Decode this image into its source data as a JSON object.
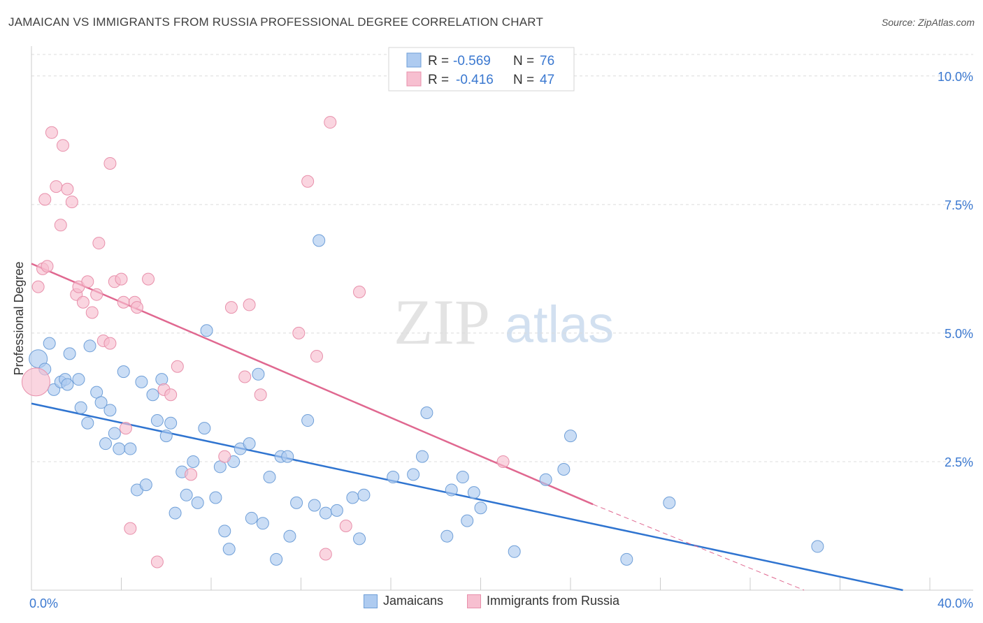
{
  "title": "JAMAICAN VS IMMIGRANTS FROM RUSSIA PROFESSIONAL DEGREE CORRELATION CHART",
  "source": "Source: ZipAtlas.com",
  "watermark": {
    "zip": "ZIP",
    "atlas": "atlas"
  },
  "legend_top": [
    {
      "r_label": "R = ",
      "r_value": "-0.569",
      "n_label": "N = ",
      "n_value": "76"
    },
    {
      "r_label": "R = ",
      "r_value": "-0.416",
      "n_label": "N = ",
      "n_value": "47"
    }
  ],
  "colors": {
    "blue_fill": "#aecbf0",
    "blue_stroke": "#6f9fd8",
    "blue_line": "#2f74d0",
    "pink_fill": "#f7bfd0",
    "pink_stroke": "#e890ab",
    "pink_line": "#e06890",
    "value_text": "#3a78d0"
  },
  "chart_data": {
    "type": "scatter",
    "title": "JAMAICAN VS IMMIGRANTS FROM RUSSIA PROFESSIONAL DEGREE CORRELATION CHART",
    "xlabel": "",
    "ylabel": "Professional Degree",
    "xlim": [
      0,
      40
    ],
    "ylim": [
      0,
      10.5
    ],
    "x_tick_labels": [
      {
        "value": 0,
        "label": "0.0%"
      },
      {
        "value": 40,
        "label": "40.0%"
      }
    ],
    "y_tick_labels": [
      {
        "value": 2.5,
        "label": "2.5%"
      },
      {
        "value": 5.0,
        "label": "5.0%"
      },
      {
        "value": 7.5,
        "label": "7.5%"
      },
      {
        "value": 10.0,
        "label": "10.0%"
      }
    ],
    "grid": true,
    "legend_position": "top-center",
    "series": [
      {
        "name": "Jamaicans",
        "color": "#aecbf0",
        "r": -0.569,
        "n": 76,
        "trend": {
          "x": [
            0,
            38.8
          ],
          "y": [
            3.63,
            0.0
          ]
        },
        "points": [
          [
            0.3,
            4.5
          ],
          [
            0.6,
            4.3
          ],
          [
            0.8,
            4.8
          ],
          [
            1.0,
            3.9
          ],
          [
            1.3,
            4.05
          ],
          [
            1.5,
            4.1
          ],
          [
            1.6,
            4.0
          ],
          [
            1.7,
            4.6
          ],
          [
            2.1,
            4.1
          ],
          [
            2.2,
            3.55
          ],
          [
            2.5,
            3.25
          ],
          [
            2.6,
            4.75
          ],
          [
            2.9,
            3.85
          ],
          [
            3.1,
            3.65
          ],
          [
            3.3,
            2.85
          ],
          [
            3.5,
            3.5
          ],
          [
            3.7,
            3.05
          ],
          [
            3.9,
            2.75
          ],
          [
            4.1,
            4.25
          ],
          [
            4.4,
            2.75
          ],
          [
            4.7,
            1.95
          ],
          [
            4.9,
            4.05
          ],
          [
            5.1,
            2.05
          ],
          [
            5.4,
            3.8
          ],
          [
            5.6,
            3.3
          ],
          [
            5.8,
            4.1
          ],
          [
            6.0,
            3.0
          ],
          [
            6.2,
            3.25
          ],
          [
            6.4,
            1.5
          ],
          [
            6.7,
            2.3
          ],
          [
            6.9,
            1.85
          ],
          [
            7.2,
            2.5
          ],
          [
            7.4,
            1.7
          ],
          [
            7.7,
            3.15
          ],
          [
            7.8,
            5.05
          ],
          [
            8.2,
            1.8
          ],
          [
            8.4,
            2.4
          ],
          [
            8.6,
            1.15
          ],
          [
            8.8,
            0.8
          ],
          [
            9.0,
            2.5
          ],
          [
            9.3,
            2.75
          ],
          [
            9.7,
            2.85
          ],
          [
            9.8,
            1.4
          ],
          [
            10.1,
            4.2
          ],
          [
            10.3,
            1.3
          ],
          [
            10.6,
            2.2
          ],
          [
            10.9,
            0.6
          ],
          [
            11.1,
            2.6
          ],
          [
            11.4,
            2.6
          ],
          [
            11.5,
            1.05
          ],
          [
            11.8,
            1.7
          ],
          [
            12.3,
            3.3
          ],
          [
            12.6,
            1.65
          ],
          [
            12.8,
            6.8
          ],
          [
            13.1,
            1.5
          ],
          [
            13.6,
            1.55
          ],
          [
            14.3,
            1.8
          ],
          [
            14.6,
            1.0
          ],
          [
            14.8,
            1.85
          ],
          [
            16.1,
            2.2
          ],
          [
            17.0,
            2.25
          ],
          [
            17.4,
            2.6
          ],
          [
            17.6,
            3.45
          ],
          [
            18.5,
            1.05
          ],
          [
            18.7,
            1.95
          ],
          [
            19.2,
            2.2
          ],
          [
            19.4,
            1.35
          ],
          [
            19.7,
            1.9
          ],
          [
            20.0,
            1.6
          ],
          [
            21.5,
            0.75
          ],
          [
            22.9,
            2.15
          ],
          [
            23.7,
            2.35
          ],
          [
            24.0,
            3.0
          ],
          [
            26.5,
            0.6
          ],
          [
            28.4,
            1.7
          ],
          [
            35.0,
            0.85
          ]
        ]
      },
      {
        "name": "Immigrants from Russia",
        "color": "#f7bfd0",
        "r": -0.416,
        "n": 47,
        "trend": {
          "x": [
            0,
            25.0
          ],
          "y": [
            6.35,
            1.67
          ]
        },
        "trend_dashed": {
          "x": [
            25.0,
            34.4
          ],
          "y": [
            1.67,
            0.0
          ]
        },
        "points": [
          [
            0.2,
            4.05
          ],
          [
            0.3,
            5.9
          ],
          [
            0.5,
            6.25
          ],
          [
            0.7,
            6.3
          ],
          [
            0.6,
            7.6
          ],
          [
            0.9,
            8.9
          ],
          [
            1.1,
            7.85
          ],
          [
            1.3,
            7.1
          ],
          [
            1.4,
            8.65
          ],
          [
            1.6,
            7.8
          ],
          [
            1.8,
            7.55
          ],
          [
            2.0,
            5.75
          ],
          [
            2.1,
            5.9
          ],
          [
            2.3,
            5.6
          ],
          [
            2.5,
            6.0
          ],
          [
            2.7,
            5.4
          ],
          [
            2.9,
            5.75
          ],
          [
            3.0,
            6.75
          ],
          [
            3.2,
            4.85
          ],
          [
            3.5,
            4.8
          ],
          [
            3.5,
            8.3
          ],
          [
            3.7,
            6.0
          ],
          [
            4.0,
            6.05
          ],
          [
            4.1,
            5.6
          ],
          [
            4.2,
            3.15
          ],
          [
            4.4,
            1.2
          ],
          [
            4.6,
            5.6
          ],
          [
            4.7,
            5.5
          ],
          [
            5.2,
            6.05
          ],
          [
            5.6,
            0.55
          ],
          [
            5.9,
            3.9
          ],
          [
            6.2,
            3.8
          ],
          [
            6.5,
            4.35
          ],
          [
            7.1,
            2.25
          ],
          [
            8.6,
            2.6
          ],
          [
            8.9,
            5.5
          ],
          [
            9.5,
            4.15
          ],
          [
            9.7,
            5.55
          ],
          [
            10.2,
            3.8
          ],
          [
            11.9,
            5.0
          ],
          [
            12.3,
            7.95
          ],
          [
            12.7,
            4.55
          ],
          [
            13.1,
            0.7
          ],
          [
            13.3,
            9.1
          ],
          [
            14.0,
            1.25
          ],
          [
            14.6,
            5.8
          ],
          [
            21.0,
            2.5
          ]
        ]
      }
    ]
  },
  "legend_bottom": [
    "Jamaicans",
    "Immigrants from Russia"
  ]
}
